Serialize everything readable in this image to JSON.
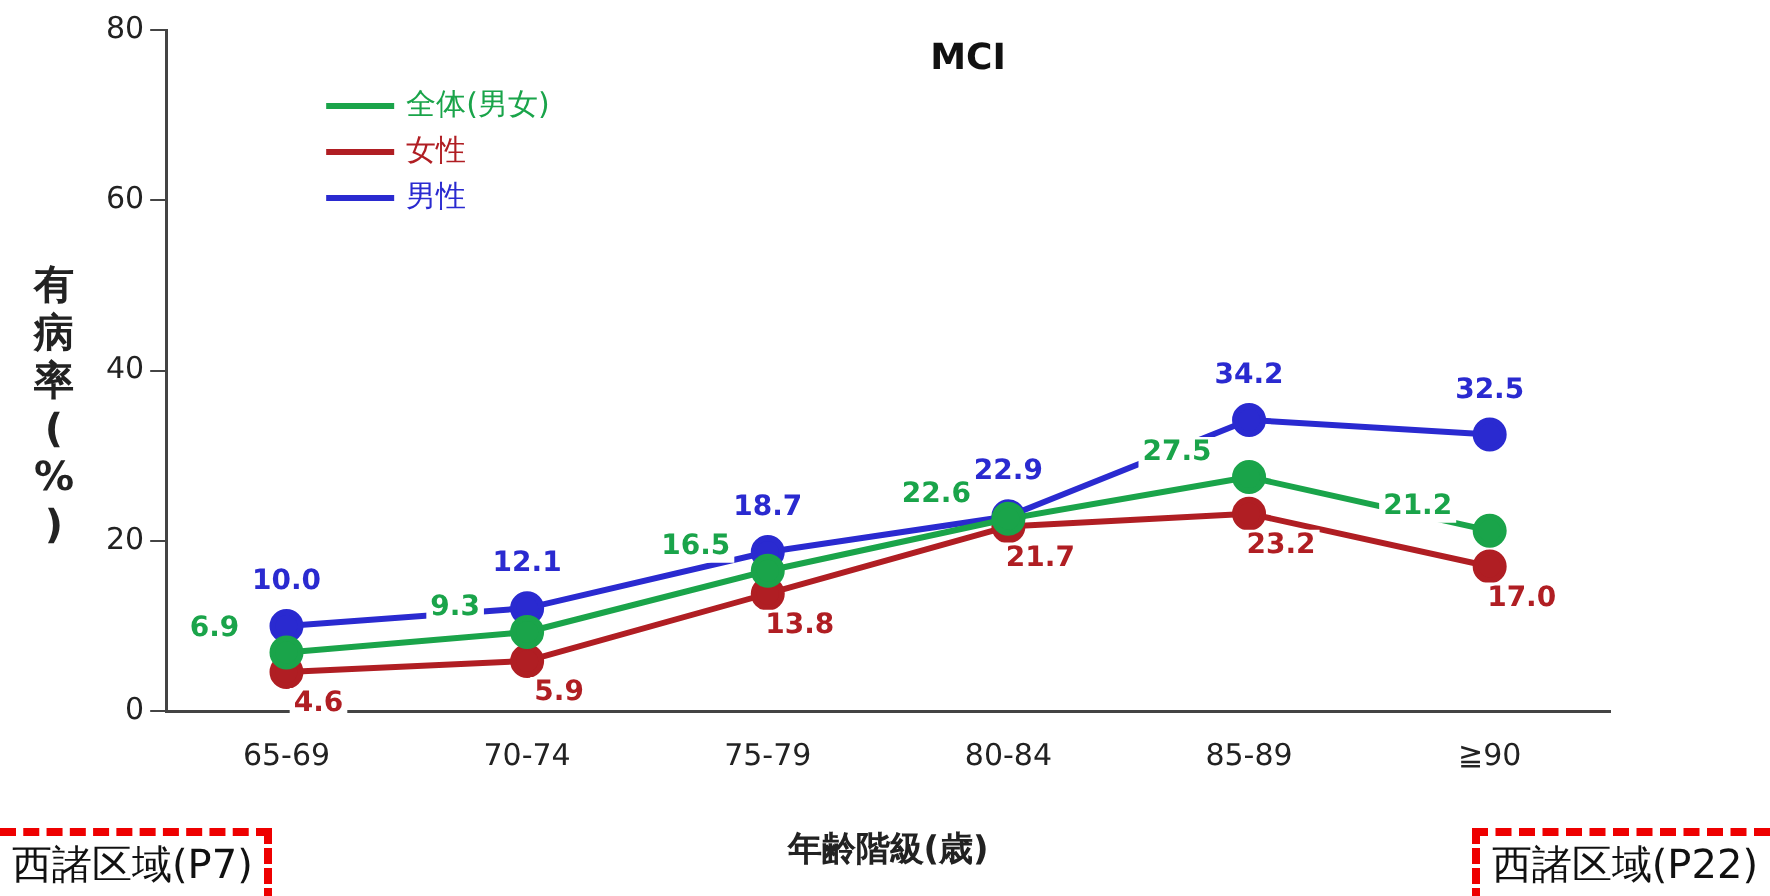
{
  "chart_data": {
    "type": "line",
    "title": "MCI",
    "xlabel": "年齢階級(歳)",
    "ylabel": "有病率(%)",
    "categories": [
      "65-69",
      "70-74",
      "75-79",
      "80-84",
      "85-89",
      "≧90"
    ],
    "series": [
      {
        "name": "全体(男女)",
        "color": "#1aa44a",
        "values": [
          6.9,
          9.3,
          16.5,
          22.6,
          27.5,
          21.2
        ],
        "value_labels": [
          "6.9",
          "9.3",
          "16.5",
          "22.6",
          "27.5",
          "21.2"
        ]
      },
      {
        "name": "女性",
        "color": "#b01e23",
        "values": [
          4.6,
          5.9,
          13.8,
          21.7,
          23.2,
          17.0
        ],
        "value_labels": [
          "4.6",
          "5.9",
          "13.8",
          "21.7",
          "23.2",
          "17.0"
        ]
      },
      {
        "name": "男性",
        "color": "#2a2ad0",
        "values": [
          10.0,
          12.1,
          18.7,
          22.9,
          34.2,
          32.5
        ],
        "value_labels": [
          "10.0",
          "12.1",
          "18.7",
          "22.9",
          "34.2",
          "32.5"
        ]
      }
    ],
    "ylim": [
      0,
      80
    ],
    "yticks": [
      0,
      20,
      40,
      60,
      80
    ],
    "grid": false,
    "legend": "top left",
    "marker": "circle",
    "line_style": "solid",
    "annotations": [
      "西諸区域(P7)",
      "西諸区域(P22)"
    ]
  }
}
